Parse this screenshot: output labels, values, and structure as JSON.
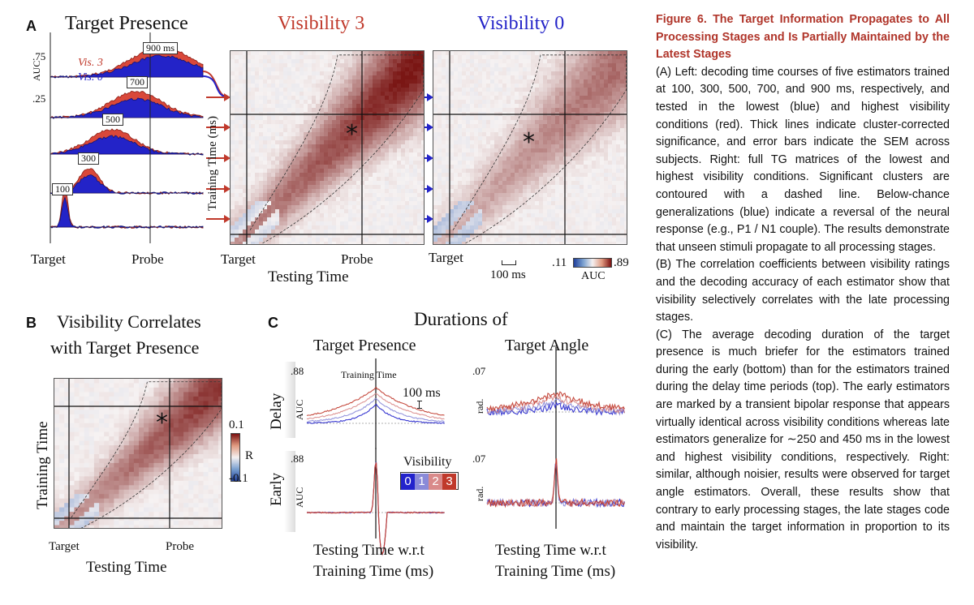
{
  "panelA": {
    "letter": "A",
    "title_presence": "Target Presence",
    "title_vis3": "Visibility 3",
    "title_vis0": "Visibility 0",
    "auc_label": "AUC",
    "tick_75": ".75",
    "tick_25": ".25",
    "vis3_label": "Vis. 3",
    "vis0_label": "Vis. 0",
    "estimators": [
      "900 ms",
      "700",
      "500",
      "300",
      "100"
    ],
    "x_target": "Target",
    "x_probe": "Probe",
    "y_training": "Training Time (ms)",
    "x_testing": "Testing Time",
    "x_target_2": "Target",
    "x_probe_2": "Probe",
    "x_target_3": "Target",
    "scale_bar": "100 ms",
    "cbar_min": ".11",
    "cbar_max": ".89",
    "cbar_label": "AUC",
    "colors": {
      "vis3": "#c0392b",
      "vis0": "#2323c8",
      "accent": "#b0352a"
    }
  },
  "panelB": {
    "letter": "B",
    "title_line1": "Visibility Correlates",
    "title_line2": "with Target Presence",
    "y_label": "Training Time",
    "x_target": "Target",
    "x_probe": "Probe",
    "x_label": "Testing Time",
    "cbar_max": "0.1",
    "cbar_mid": "R",
    "cbar_min": "-0.1"
  },
  "panelC": {
    "letter": "C",
    "title": "Durations of",
    "col1": "Target Presence",
    "col2": "Target Angle",
    "row1": "Delay",
    "row2": "Early",
    "tick_88a": ".88",
    "tick_88b": ".88",
    "tick_07a": ".07",
    "tick_07b": ".07",
    "auc_a": "AUC",
    "auc_b": "AUC",
    "rad_a": "rad.",
    "rad_b": "rad.",
    "training_time": "Training Time",
    "scale": "100 ms",
    "visibility_label": "Visibility",
    "visibility_levels": [
      "0",
      "1",
      "2",
      "3"
    ],
    "visibility_colors": [
      "#2222cc",
      "#8a8ad8",
      "#d98a8a",
      "#c0392b"
    ],
    "x_label_line1": "Testing Time w.r.t",
    "x_label_line2": "Training Time (ms)",
    "x2_label_line1": "Testing Time w.r.t",
    "x2_label_line2": "Training Time (ms)"
  },
  "caption": {
    "title": "Figure 6. The Target Information Propagates to All Processing Stages and Is Partially Maintained by the Latest Stages",
    "para_a": "(A) Left: decoding time courses of five estimators trained at 100, 300, 500, 700, and 900 ms, respectively, and tested in the lowest (blue) and highest visibility conditions (red). Thick lines indicate cluster-corrected significance, and error bars indicate the SEM across subjects. Right: full TG matrices of the lowest and highest visibility conditions. Significant clusters are contoured with a dashed line. Below-chance generalizations (blue) indicate a reversal of the neural response (e.g., P1 / N1 couple). The results demonstrate that unseen stimuli propagate to all processing stages.",
    "para_b": "(B) The correlation coefficients between visibility ratings and the decoding accuracy of each estimator show that visibility selectively correlates with the late processing stages.",
    "para_c": "(C) The average decoding duration of the target presence is much briefer for the estimators trained during the early (bottom) than for the estimators trained during the delay time periods (top). The early estimators are marked by a transient bipolar response that appears virtually identical across visibility conditions whereas late estimators generalize for ∼250 and 450 ms in the lowest and highest visibility conditions, respectively. Right: similar, although noisier, results were observed for target angle estimators. Overall, these results show that contrary to early processing stages, the late stages code and maintain the target information in proportion to its visibility."
  }
}
